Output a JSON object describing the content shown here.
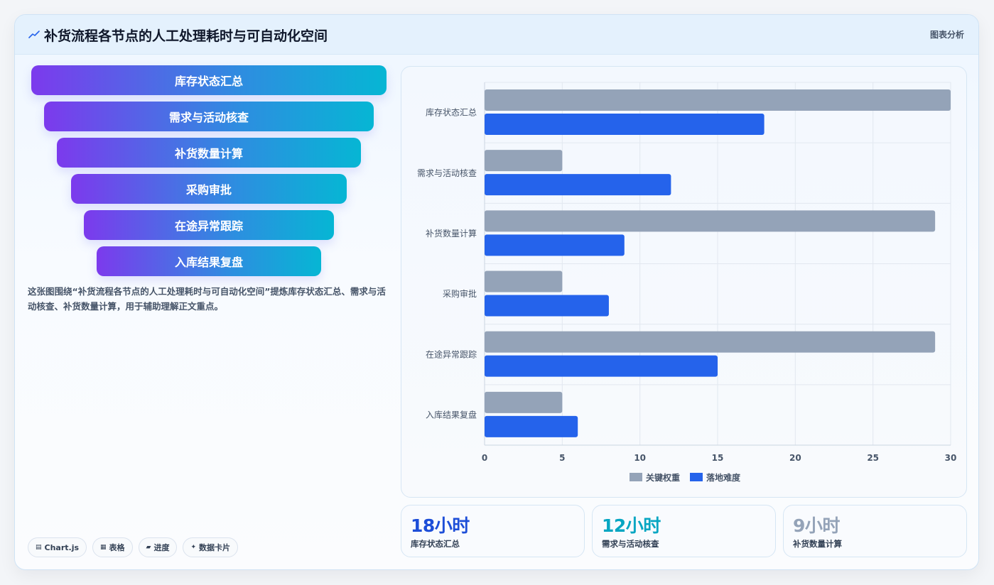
{
  "header": {
    "title": "补货流程各节点的人工处理耗时与可自动化空间",
    "tag": "图表分析"
  },
  "funnel": {
    "steps": [
      "库存状态汇总",
      "需求与活动核查",
      "补货数量计算",
      "采购审批",
      "在途异常跟踪",
      "入库结果复盘"
    ]
  },
  "description": "这张图围绕“补货流程各节点的人工处理耗时与可自动化空间”提炼库存状态汇总、需求与活动核查、补货数量计算，用于辅助理解正文重点。",
  "badges": [
    {
      "icon": "chart-icon",
      "glyph": "▤",
      "label": "Chart.js"
    },
    {
      "icon": "table-icon",
      "glyph": "▦",
      "label": "表格"
    },
    {
      "icon": "progress-icon",
      "glyph": "▰",
      "label": "进度"
    },
    {
      "icon": "sparkle-icon",
      "glyph": "✦",
      "label": "数据卡片"
    }
  ],
  "chart_data": {
    "type": "bar",
    "orientation": "horizontal",
    "categories": [
      "库存状态汇总",
      "需求与活动核查",
      "补货数量计算",
      "采购审批",
      "在途异常跟踪",
      "入库结果复盘"
    ],
    "series": [
      {
        "name": "关键权重",
        "color": "#94a3b8",
        "values": [
          30,
          5,
          29,
          5,
          29,
          5
        ]
      },
      {
        "name": "落地难度",
        "color": "#2563eb",
        "values": [
          18,
          12,
          9,
          8,
          15,
          6
        ]
      }
    ],
    "xlim": [
      0,
      30
    ],
    "xticks": [
      "0",
      "5",
      "10",
      "15",
      "20",
      "25",
      "30"
    ],
    "grid": true,
    "legend_position": "bottom"
  },
  "kpis": [
    {
      "value": "18小时",
      "label": "库存状态汇总",
      "color": "#1d4ed8"
    },
    {
      "value": "12小时",
      "label": "需求与活动核查",
      "color": "#06a6c2"
    },
    {
      "value": "9小时",
      "label": "补货数量计算",
      "color": "#94a3b8"
    }
  ]
}
